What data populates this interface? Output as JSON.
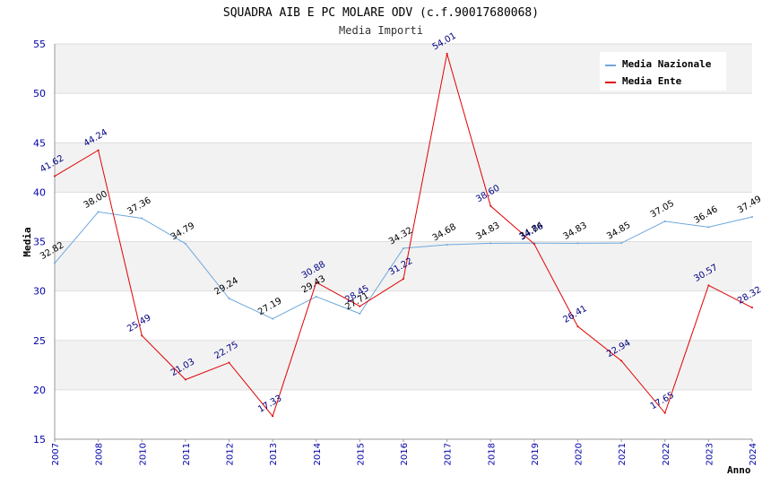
{
  "chart_data": {
    "type": "line",
    "title": "SQUADRA AIB E PC MOLARE ODV (c.f.90017680068)",
    "subtitle": "Media Importi",
    "xlabel": "Anno",
    "ylabel": "Media",
    "ylim": [
      15,
      55
    ],
    "yticks": [
      15,
      20,
      25,
      30,
      35,
      40,
      45,
      50,
      55
    ],
    "categories": [
      "2007",
      "2008",
      "2010",
      "2011",
      "2012",
      "2013",
      "2014",
      "2015",
      "2016",
      "2017",
      "2018",
      "2019",
      "2020",
      "2021",
      "2022",
      "2023",
      "2024"
    ],
    "series": [
      {
        "name": "Media Nazionale",
        "color": "#6fa8dc",
        "values": [
          32.82,
          38.0,
          37.36,
          34.79,
          29.24,
          27.19,
          29.43,
          27.71,
          34.32,
          34.68,
          34.83,
          34.84,
          34.83,
          34.85,
          37.05,
          36.46,
          37.49
        ],
        "labels": [
          "32.82",
          "38.00",
          "37.36",
          "34.79",
          "29.24",
          "27.19",
          "29.43",
          "27.71",
          "34.32",
          "34.68",
          "34.83",
          "34.84",
          "34.83",
          "34.85",
          "37.05",
          "36.46",
          "37.49"
        ]
      },
      {
        "name": "Media Ente",
        "color": "#e00000",
        "values": [
          41.62,
          44.24,
          25.49,
          21.03,
          22.75,
          17.33,
          30.88,
          28.45,
          31.22,
          54.01,
          38.6,
          34.76,
          26.41,
          22.94,
          17.65,
          30.57,
          28.32
        ],
        "labels": [
          "41.62",
          "44.24",
          "25.49",
          "21.03",
          "22.75",
          "17.33",
          "30.88",
          "28.45",
          "31.22",
          "54.01",
          "38.60",
          "34.76",
          "26.41",
          "22.94",
          "17.65",
          "30.57",
          "28.32"
        ]
      }
    ],
    "legend_position": "top-right",
    "grid": true
  }
}
